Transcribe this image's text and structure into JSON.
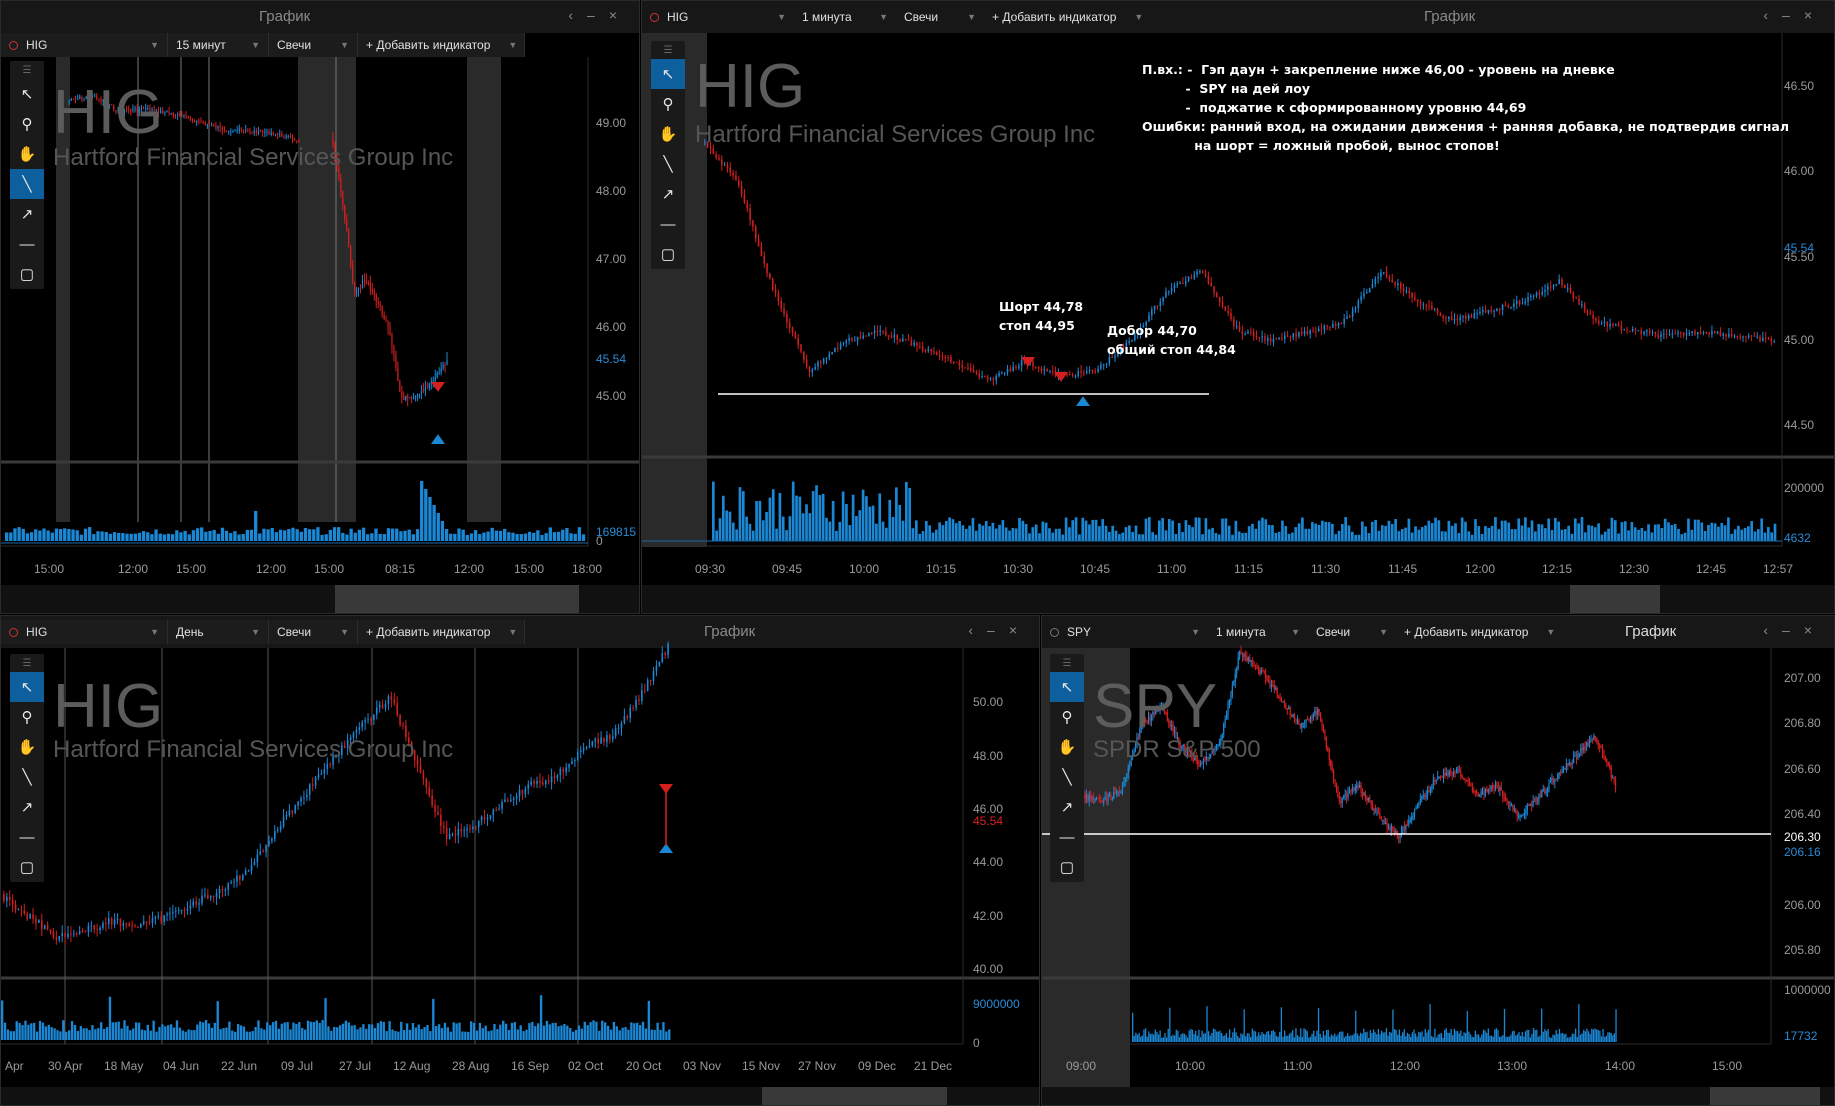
{
  "colors": {
    "up": "#1b88d6",
    "down": "#d41f1f",
    "volume": "#1b88d6",
    "accent": "#0e5f9e"
  },
  "tools": [
    "pointer-icon",
    "zoom-icon",
    "hand-icon",
    "line-icon",
    "arrow-icon",
    "hline-icon",
    "rect-icon"
  ],
  "window_buttons": [
    "‹",
    "–",
    "×"
  ],
  "panel1": {
    "title": "График",
    "symbol": "HIG",
    "interval": "15 минут",
    "type": "Свечи",
    "add_indicator": "+ Добавить индикатор",
    "wm_symbol": "HIG",
    "wm_name": "Hartford Financial Services Group Inc",
    "prices": [
      "49.00",
      "48.00",
      "47.00",
      "46.00",
      "45.54",
      "45.00",
      "169815",
      "0"
    ],
    "xlabels": [
      "15:00",
      "12:00",
      "15:00",
      "12:00",
      "15:00",
      "08:15",
      "12:00",
      "15:00",
      "18:00"
    ]
  },
  "panel2": {
    "title": "График",
    "symbol": "HIG",
    "interval": "1 минута",
    "type": "Свечи",
    "add_indicator": "+ Добавить индикатор",
    "wm_symbol": "HIG",
    "wm_name": "Hartford Financial Services Group Inc",
    "prices": [
      "46.50",
      "46.00",
      "45.54",
      "45.50",
      "45.00",
      "44.50",
      "200000",
      "4632"
    ],
    "xlabels": [
      "09:30",
      "09:45",
      "10:00",
      "10:15",
      "10:30",
      "10:45",
      "11:00",
      "11:15",
      "11:30",
      "11:45",
      "12:00",
      "12:15",
      "12:30",
      "12:45",
      "12:57"
    ],
    "annotation": "П.вх.: -  Гэп даун + закрепление ниже 46,00 - уровень на дневке\n          -  SPY на дей лоу\n          -  поджатие к сформированному уровню 44,69\nОшибки: ранний вход, на ожидании движения + ранняя добавка, не подтвердив сигнал\n            на шорт = ложный пробой, вынос стопов!",
    "short_label": "Шорт 44,78\nстоп 44,95",
    "add_label": "Добор 44,70\nобщий стоп 44,84"
  },
  "panel3": {
    "title": "График",
    "symbol": "HIG",
    "interval": "День",
    "type": "Свечи",
    "add_indicator": "+ Добавить индикатор",
    "wm_symbol": "HIG",
    "wm_name": "Hartford Financial Services Group Inc",
    "prices": [
      "50.00",
      "48.00",
      "46.00",
      "45.54",
      "44.00",
      "42.00",
      "40.00",
      "9000000",
      "0"
    ],
    "xlabels": [
      "Apr",
      "30 Apr",
      "18 May",
      "04 Jun",
      "22 Jun",
      "09 Jul",
      "27 Jul",
      "12 Aug",
      "28 Aug",
      "16 Sep",
      "02 Oct",
      "20 Oct",
      "03 Nov",
      "15 Nov",
      "27 Nov",
      "09 Dec",
      "21 Dec"
    ]
  },
  "panel4": {
    "title": "График",
    "symbol": "SPY",
    "interval": "1 минута",
    "type": "Свечи",
    "add_indicator": "+ Добавить индикатор",
    "wm_symbol": "SPY",
    "wm_name": "SPDR S&P 500",
    "prices": [
      "207.00",
      "206.80",
      "206.60",
      "206.40",
      "206.30",
      "206.16",
      "206.00",
      "205.80",
      "1000000",
      "17732"
    ],
    "xlabels": [
      "09:00",
      "10:00",
      "11:00",
      "12:00",
      "13:00",
      "14:00",
      "15:00"
    ]
  }
}
